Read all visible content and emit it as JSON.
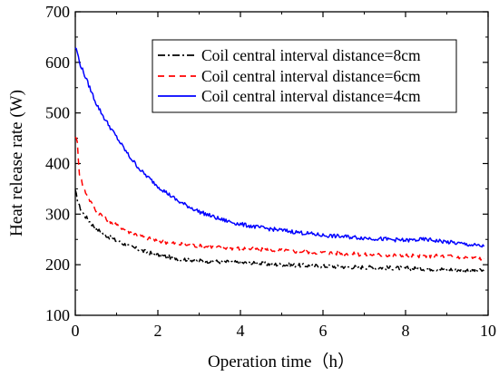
{
  "chart_data": {
    "type": "line",
    "xlabel": "Operation time（h）",
    "ylabel": "Heat release rate (W)",
    "xlim": [
      0,
      10
    ],
    "ylim": [
      100,
      700
    ],
    "xticks": [
      0,
      2,
      4,
      6,
      8,
      10
    ],
    "yticks": [
      100,
      200,
      300,
      400,
      500,
      600,
      700
    ],
    "xtick_labels": [
      "0",
      "2",
      "4",
      "6",
      "8",
      "10"
    ],
    "ytick_labels": [
      "100",
      "200",
      "300",
      "400",
      "500",
      "600",
      "700"
    ],
    "grid": false,
    "legend_position": "top-right",
    "series": [
      {
        "name": "Coil central interval distance=8cm",
        "color": "#000000",
        "dash": "dash-dot",
        "x": [
          0,
          0.1,
          0.2,
          0.3,
          0.4,
          0.5,
          0.7,
          1.0,
          1.3,
          1.6,
          2.0,
          2.5,
          3.0,
          3.5,
          4.0,
          5.0,
          6.0,
          7.0,
          8.0,
          9.0,
          9.9
        ],
        "y": [
          345,
          315,
          300,
          290,
          280,
          272,
          260,
          247,
          237,
          228,
          219,
          212,
          208,
          206,
          204,
          200,
          197,
          195,
          193,
          191,
          188
        ]
      },
      {
        "name": "Coil central interval distance=6cm",
        "color": "#ff0000",
        "dash": "dash",
        "x": [
          0,
          0.05,
          0.1,
          0.2,
          0.3,
          0.4,
          0.5,
          0.7,
          1.0,
          1.3,
          1.6,
          2.0,
          2.5,
          3.0,
          3.5,
          4.0,
          5.0,
          6.0,
          7.0,
          8.0,
          9.0,
          9.9
        ],
        "y": [
          455,
          440,
          380,
          352,
          335,
          320,
          308,
          293,
          278,
          265,
          256,
          247,
          241,
          237,
          234,
          232,
          228,
          224,
          220,
          218,
          217,
          212
        ]
      },
      {
        "name": "Coil central interval distance=4cm",
        "color": "#0000ff",
        "dash": "solid",
        "x": [
          0,
          0.05,
          0.1,
          0.2,
          0.3,
          0.4,
          0.5,
          0.7,
          1.0,
          1.3,
          1.6,
          2.0,
          2.5,
          3.0,
          3.5,
          4.0,
          4.5,
          5.0,
          6.0,
          7.0,
          8.0,
          8.5,
          9.0,
          9.5,
          9.9
        ],
        "y": [
          630,
          620,
          600,
          580,
          560,
          540,
          520,
          490,
          452,
          415,
          385,
          355,
          325,
          305,
          290,
          280,
          273,
          268,
          258,
          253,
          248,
          250,
          245,
          240,
          236
        ]
      }
    ]
  }
}
